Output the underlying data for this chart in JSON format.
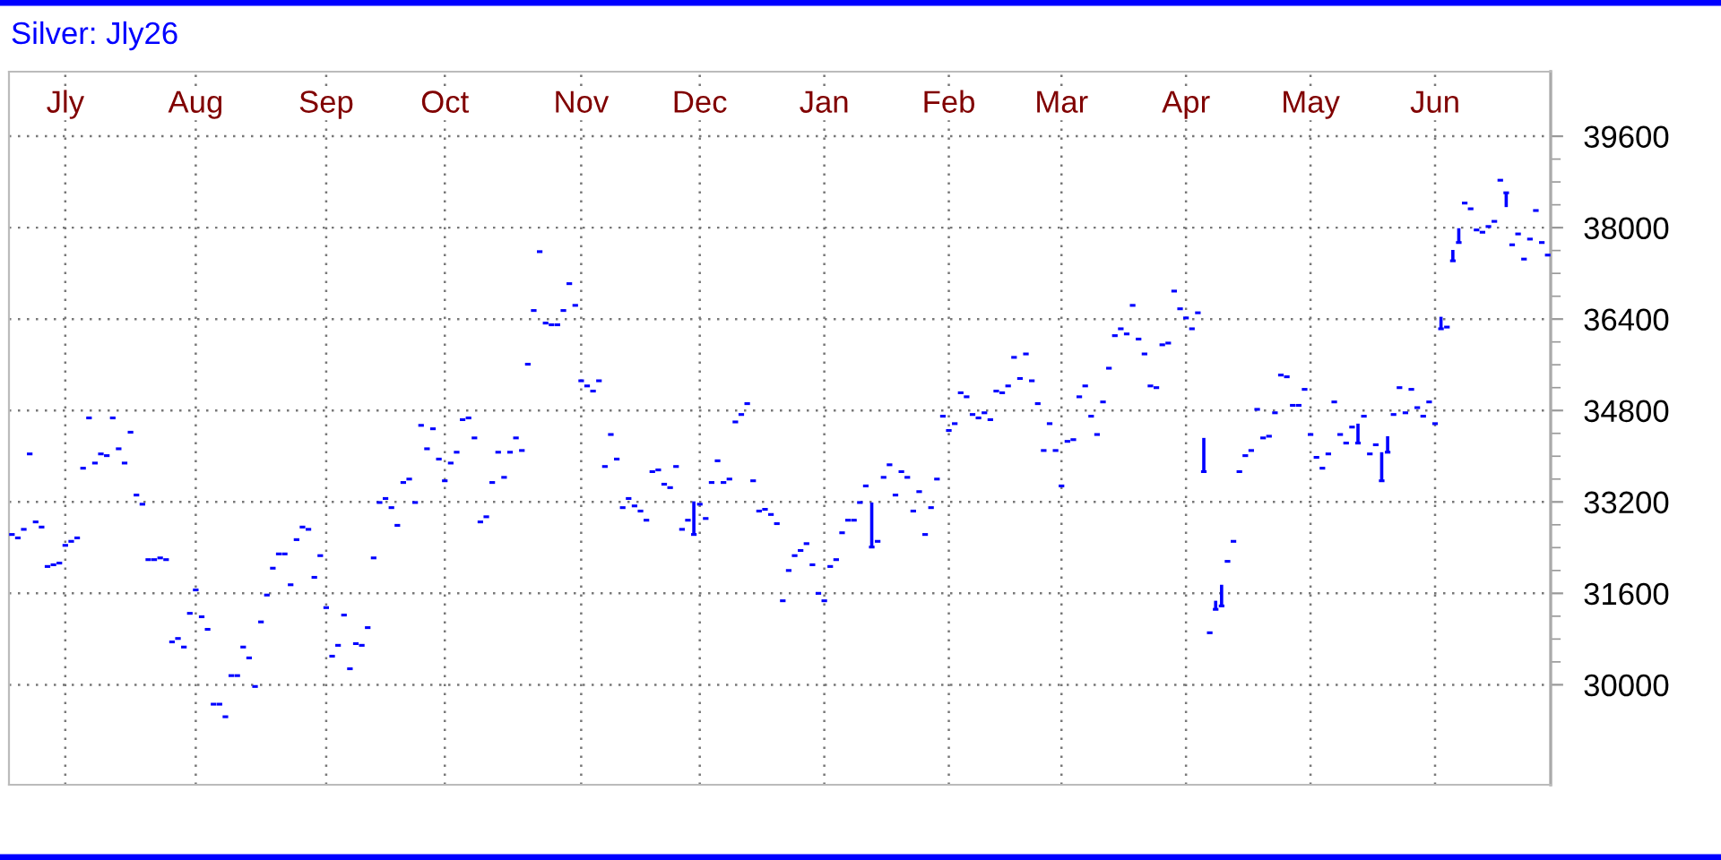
{
  "chart_data": {
    "type": "scatter",
    "title": "Silver: Jly26",
    "color": "#0000ff",
    "ylim": [
      28250,
      40730
    ],
    "yticks": [
      30000,
      31600,
      33200,
      34800,
      36400,
      38000,
      39600
    ],
    "grid": true,
    "categories": [
      null,
      null,
      null,
      null,
      null,
      null,
      null,
      null,
      null,
      "Jly",
      null,
      null,
      null,
      null,
      null,
      null,
      null,
      null,
      null,
      null,
      null,
      null,
      null,
      null,
      null,
      null,
      null,
      null,
      null,
      null,
      null,
      "Aug",
      null,
      null,
      null,
      null,
      null,
      null,
      null,
      null,
      null,
      null,
      null,
      null,
      null,
      null,
      null,
      null,
      null,
      null,
      null,
      null,
      null,
      "Sep",
      null,
      null,
      null,
      null,
      null,
      null,
      null,
      null,
      null,
      null,
      null,
      null,
      null,
      null,
      null,
      null,
      null,
      null,
      null,
      "Oct",
      null,
      null,
      null,
      null,
      null,
      null,
      null,
      null,
      null,
      null,
      null,
      null,
      null,
      null,
      null,
      null,
      null,
      null,
      null,
      null,
      null,
      null,
      "Nov",
      null,
      null,
      null,
      null,
      null,
      null,
      null,
      null,
      null,
      null,
      null,
      null,
      null,
      null,
      null,
      null,
      null,
      null,
      null,
      "Dec",
      null,
      null,
      null,
      null,
      null,
      null,
      null,
      null,
      null,
      null,
      null,
      null,
      null,
      null,
      null,
      null,
      null,
      null,
      null,
      null,
      "Jan",
      null,
      null,
      null,
      null,
      null,
      null,
      null,
      null,
      null,
      null,
      null,
      null,
      null,
      null,
      null,
      null,
      null,
      null,
      null,
      null,
      "Feb",
      null,
      null,
      null,
      null,
      null,
      null,
      null,
      null,
      null,
      null,
      null,
      null,
      null,
      null,
      null,
      null,
      null,
      null,
      "Mar",
      null,
      null,
      null,
      null,
      null,
      null,
      null,
      null,
      null,
      null,
      null,
      null,
      null,
      null,
      null,
      null,
      null,
      null,
      null,
      null,
      "Apr",
      null,
      null,
      null,
      null,
      null,
      null,
      null,
      null,
      null,
      null,
      null,
      null,
      null,
      null,
      null,
      null,
      null,
      null,
      null,
      null,
      "May",
      null,
      null,
      null,
      null,
      null,
      null,
      null,
      null,
      null,
      null,
      null,
      null,
      null,
      null,
      null,
      null,
      null,
      null,
      null,
      null,
      "Jun",
      null,
      null,
      null,
      null,
      null,
      null,
      null,
      null,
      null,
      null,
      null,
      null,
      null,
      null,
      null,
      null,
      null,
      null,
      null
    ],
    "values": [
      32630,
      32570,
      32720,
      34040,
      32850,
      32760,
      32070,
      32100,
      32130,
      32440,
      32510,
      32570,
      33790,
      34670,
      33880,
      34040,
      34010,
      34670,
      34130,
      33880,
      34420,
      33320,
      33160,
      32190,
      32190,
      32220,
      32190,
      30750,
      30810,
      30660,
      31250,
      31660,
      31190,
      30970,
      29660,
      29660,
      29440,
      30160,
      30160,
      30660,
      30470,
      29970,
      31100,
      31570,
      32040,
      32290,
      32290,
      31750,
      32540,
      32760,
      32720,
      31880,
      32260,
      31350,
      30500,
      30690,
      31220,
      30280,
      30720,
      30690,
      31000,
      32220,
      33190,
      33260,
      33100,
      32790,
      33540,
      33600,
      33190,
      34540,
      34130,
      34480,
      33950,
      33570,
      33880,
      34070,
      34640,
      34670,
      34320,
      32850,
      32940,
      33540,
      34070,
      33630,
      34070,
      34320,
      34100,
      35610,
      36550,
      37580,
      36330,
      36300,
      36300,
      36550,
      37020,
      36640,
      35320,
      35230,
      35140,
      35320,
      33820,
      34380,
      33950,
      33100,
      33260,
      33130,
      33040,
      32880,
      33730,
      33760,
      33510,
      33450,
      33820,
      32720,
      32880,
      32630,
      33160,
      32910,
      33540,
      33920,
      33540,
      33600,
      34600,
      34730,
      34920,
      33570,
      33040,
      33070,
      32980,
      32820,
      31470,
      32000,
      32260,
      32350,
      32470,
      32100,
      31600,
      31470,
      32070,
      32190,
      32660,
      32880,
      32880,
      33190,
      33480,
      32410,
      32510,
      33630,
      33850,
      33320,
      33730,
      33630,
      33040,
      33380,
      32630,
      33100,
      33600,
      34700,
      34450,
      34570,
      35110,
      35040,
      34730,
      34670,
      34760,
      34640,
      35140,
      35110,
      35230,
      35730,
      35360,
      35790,
      35320,
      34920,
      34100,
      34570,
      34100,
      33480,
      34260,
      34290,
      35040,
      35230,
      34700,
      34380,
      34950,
      35540,
      36110,
      36230,
      36140,
      36640,
      36050,
      35790,
      35230,
      35200,
      35950,
      35980,
      36890,
      36580,
      36420,
      36230,
      36510,
      33730,
      30910,
      31320,
      31380,
      32160,
      32510,
      33730,
      34010,
      34100,
      34820,
      34320,
      34350,
      34760,
      35420,
      35390,
      34890,
      34890,
      35170,
      34380,
      33980,
      33790,
      34040,
      34950,
      34380,
      34230,
      34510,
      34230,
      34700,
      34040,
      34200,
      33570,
      34070,
      34730,
      35200,
      34760,
      35170,
      34850,
      34700,
      34950,
      34570,
      36230,
      36260,
      37420,
      37740,
      38430,
      38330,
      37960,
      37920,
      38020,
      38110,
      38830,
      38610,
      37700,
      37890,
      37450,
      37800,
      38300,
      37740,
      37520
    ],
    "errors": [
      null,
      null,
      null,
      null,
      null,
      null,
      null,
      null,
      null,
      null,
      null,
      null,
      null,
      null,
      null,
      null,
      null,
      null,
      null,
      null,
      null,
      null,
      null,
      null,
      null,
      null,
      null,
      null,
      null,
      null,
      null,
      null,
      null,
      null,
      null,
      null,
      null,
      null,
      null,
      null,
      null,
      null,
      null,
      null,
      null,
      null,
      null,
      null,
      null,
      null,
      null,
      null,
      null,
      null,
      null,
      null,
      null,
      null,
      null,
      null,
      null,
      null,
      null,
      null,
      null,
      null,
      null,
      null,
      null,
      null,
      null,
      null,
      null,
      null,
      null,
      null,
      null,
      null,
      null,
      null,
      null,
      null,
      null,
      null,
      null,
      null,
      null,
      null,
      null,
      null,
      null,
      null,
      null,
      null,
      null,
      null,
      null,
      null,
      null,
      null,
      null,
      null,
      null,
      null,
      null,
      null,
      null,
      null,
      null,
      null,
      null,
      null,
      null,
      null,
      null,
      [
        32630,
        33210
      ],
      null,
      null,
      null,
      null,
      null,
      null,
      null,
      null,
      null,
      null,
      null,
      null,
      null,
      null,
      null,
      null,
      null,
      null,
      null,
      null,
      null,
      null,
      null,
      null,
      null,
      null,
      null,
      null,
      null,
      [
        32410,
        33190
      ],
      null,
      null,
      null,
      null,
      null,
      null,
      null,
      null,
      null,
      null,
      null,
      null,
      null,
      null,
      null,
      null,
      null,
      null,
      null,
      null,
      null,
      null,
      null,
      null,
      null,
      null,
      null,
      null,
      null,
      null,
      null,
      null,
      null,
      null,
      null,
      null,
      null,
      null,
      null,
      null,
      null,
      null,
      null,
      null,
      null,
      null,
      null,
      null,
      null,
      null,
      null,
      null,
      null,
      null,
      null,
      [
        33730,
        34320
      ],
      null,
      [
        31320,
        31470
      ],
      [
        31380,
        31750
      ],
      null,
      null,
      null,
      null,
      null,
      null,
      null,
      null,
      null,
      null,
      null,
      null,
      null,
      null,
      null,
      null,
      null,
      null,
      null,
      null,
      null,
      null,
      [
        34230,
        34570
      ],
      null,
      null,
      null,
      [
        33570,
        34070
      ],
      [
        34070,
        34350
      ],
      null,
      null,
      null,
      null,
      null,
      null,
      null,
      null,
      [
        36230,
        36440
      ],
      null,
      [
        37420,
        37610
      ],
      [
        37740,
        37990
      ],
      null,
      null,
      null,
      null,
      null,
      null,
      null,
      [
        38360,
        38610
      ],
      null,
      null,
      null,
      null,
      null,
      null,
      null
    ]
  }
}
